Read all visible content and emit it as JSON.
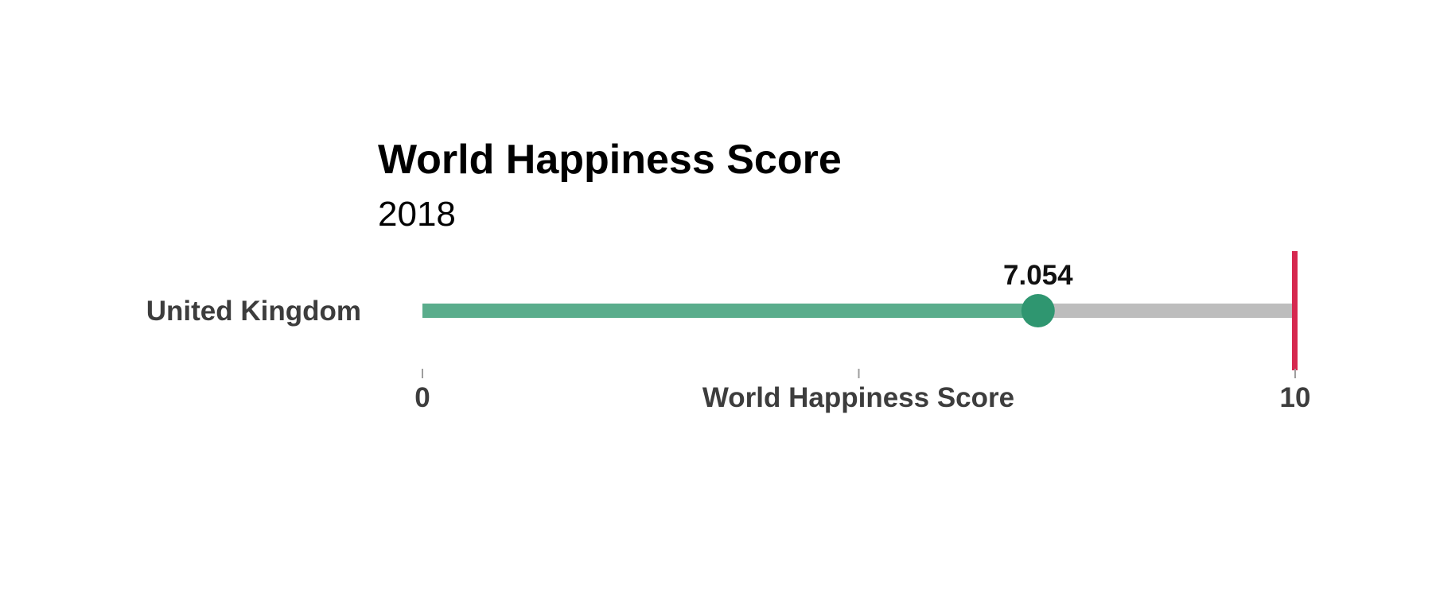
{
  "chart_data": {
    "type": "bar",
    "title": "World Happiness Score",
    "subtitle": "2018",
    "categories": [
      "United Kingdom"
    ],
    "values": [
      7.054
    ],
    "value_labels": [
      "7.054"
    ],
    "xlabel": "World Happiness Score",
    "xlim": [
      0,
      10
    ],
    "ticks": [
      0,
      5,
      10
    ],
    "tick_labels": [
      "0",
      "",
      "10"
    ],
    "target": 10,
    "grid": false,
    "legend": "none",
    "colors": {
      "fill": "#5aad8c",
      "dot": "#2f9670",
      "track": "#bdbdbd",
      "target": "#d6284f",
      "tick": "#9e9e9e"
    }
  }
}
